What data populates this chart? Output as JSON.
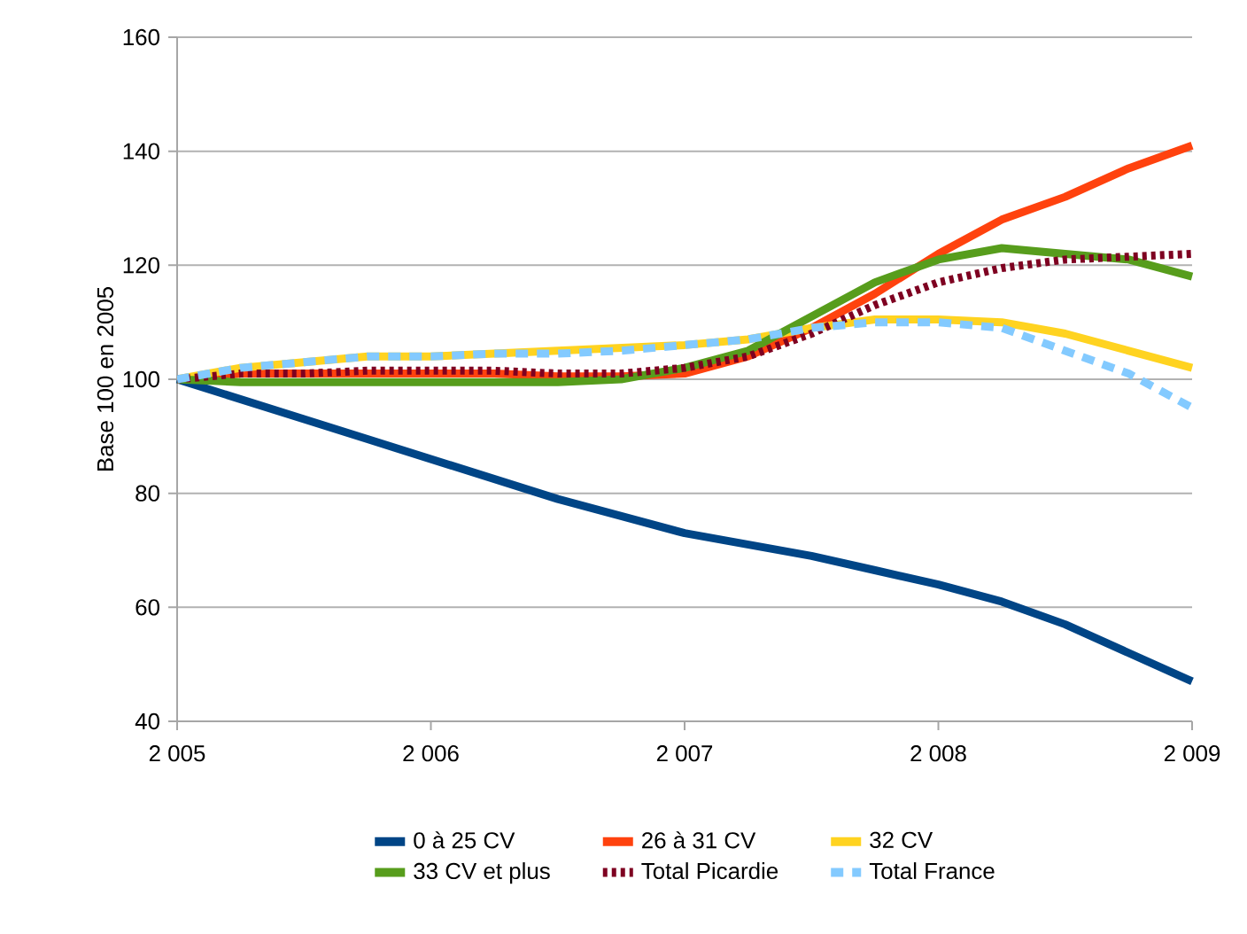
{
  "chart_data": {
    "type": "line",
    "ylabel": "Base 100 en 2005",
    "x": [
      2005,
      2005.25,
      2005.5,
      2005.75,
      2006,
      2006.25,
      2006.5,
      2006.75,
      2007,
      2007.25,
      2007.5,
      2007.75,
      2008,
      2008.25,
      2008.5,
      2008.75,
      2009
    ],
    "xlim": [
      2005,
      2009
    ],
    "ylim": [
      40,
      160
    ],
    "xticks": [
      {
        "value": 2005,
        "label": "2 005"
      },
      {
        "value": 2006,
        "label": "2 006"
      },
      {
        "value": 2007,
        "label": "2 007"
      },
      {
        "value": 2008,
        "label": "2 008"
      },
      {
        "value": 2009,
        "label": "2 009"
      }
    ],
    "yticks": [
      40,
      60,
      80,
      100,
      120,
      140,
      160
    ],
    "grid": "y",
    "legend": "bottom",
    "marker": "none",
    "series": [
      {
        "name": "0 à 25 CV",
        "color": "#004586",
        "line_style": "solid",
        "values": [
          100,
          96.5,
          93,
          89.5,
          86,
          82.5,
          79,
          76,
          73,
          71,
          69,
          66.5,
          64,
          61,
          57,
          52,
          47
        ]
      },
      {
        "name": "26 à 31 CV",
        "color": "#ff420e",
        "line_style": "solid",
        "values": [
          100,
          101,
          101,
          101,
          101,
          101,
          100.5,
          100.5,
          101,
          104,
          109,
          115,
          122,
          128,
          132,
          137,
          141
        ]
      },
      {
        "name": "32 CV",
        "color": "#ffd320",
        "line_style": "solid",
        "values": [
          100,
          102,
          103,
          104,
          104,
          104.5,
          105,
          105.5,
          106,
          107,
          109,
          110.5,
          110.5,
          110,
          108,
          105,
          102
        ]
      },
      {
        "name": "33 CV et plus",
        "color": "#579d1c",
        "line_style": "solid",
        "values": [
          100,
          99.5,
          99.5,
          99.5,
          99.5,
          99.5,
          99.5,
          100,
          102,
          105,
          111,
          117,
          121,
          123,
          122,
          121,
          118
        ]
      },
      {
        "name": "Total Picardie",
        "color": "#7e0021",
        "line_style": "dotted",
        "values": [
          100,
          101,
          101,
          101.5,
          101.5,
          101.5,
          101,
          101,
          102,
          104,
          108,
          113,
          117,
          119.5,
          121,
          121.5,
          122
        ]
      },
      {
        "name": "Total France",
        "color": "#83caff",
        "line_style": "dashed",
        "values": [
          100,
          102,
          103,
          104,
          104,
          104.5,
          104.5,
          105,
          106,
          107,
          109,
          110,
          110,
          109,
          105,
          101,
          95
        ]
      }
    ]
  }
}
